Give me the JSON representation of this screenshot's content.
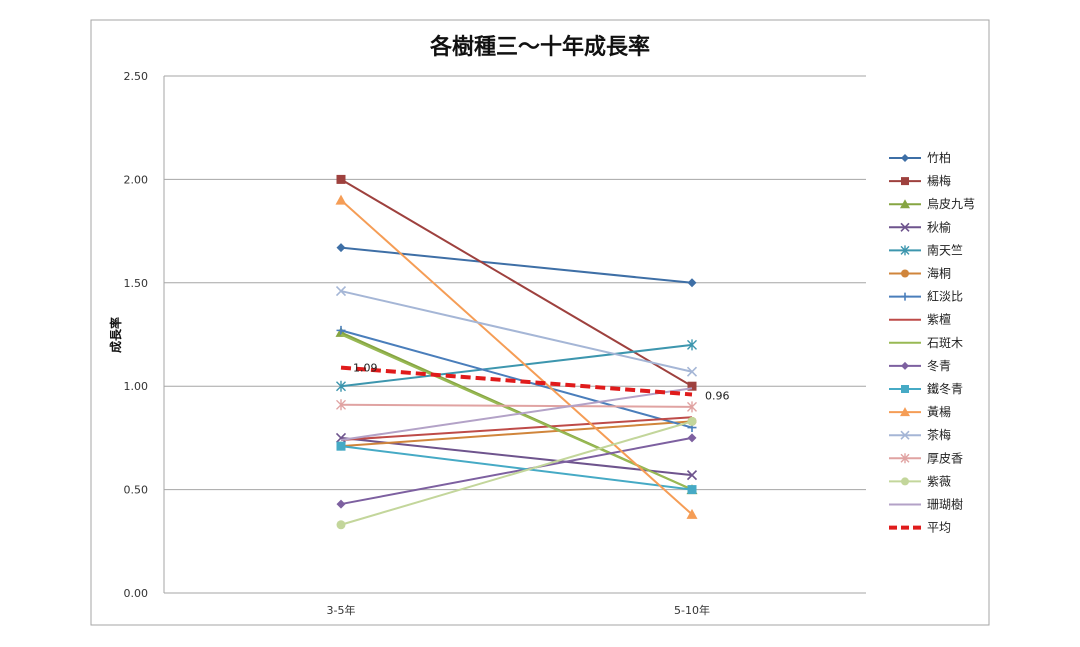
{
  "chart_data": {
    "type": "line",
    "title": "各樹種三～十年成長率",
    "xlabel": "",
    "ylabel": "成長率",
    "categories": [
      "3-5年",
      "5-10年"
    ],
    "ylim": [
      0,
      2.5
    ],
    "yticks": [
      "0.00",
      "0.50",
      "1.00",
      "1.50",
      "2.00",
      "2.50"
    ],
    "grid": true,
    "legend_position": "right",
    "series": [
      {
        "name": "竹柏",
        "values": [
          1.67,
          1.5
        ],
        "color": "#3e6fa6",
        "marker": "diamond"
      },
      {
        "name": "楊梅",
        "values": [
          2.0,
          1.0
        ],
        "color": "#9e413e",
        "marker": "square"
      },
      {
        "name": "烏皮九芎",
        "values": [
          1.26,
          0.5
        ],
        "color": "#86a542",
        "marker": "triangle"
      },
      {
        "name": "秋榆",
        "values": [
          0.75,
          0.57
        ],
        "color": "#6e548d",
        "marker": "x"
      },
      {
        "name": "南天竺",
        "values": [
          1.0,
          1.2
        ],
        "color": "#3d96ae",
        "marker": "star"
      },
      {
        "name": "海桐",
        "values": [
          0.71,
          0.83
        ],
        "color": "#d0853b",
        "marker": "circle"
      },
      {
        "name": "紅淡比",
        "values": [
          1.27,
          0.8
        ],
        "color": "#4a7ebb",
        "marker": "plus"
      },
      {
        "name": "紫檀",
        "values": [
          0.74,
          0.85
        ],
        "color": "#be4b48",
        "marker": "none"
      },
      {
        "name": "石斑木",
        "values": [
          1.25,
          0.5
        ],
        "color": "#98b954",
        "marker": "none"
      },
      {
        "name": "冬青",
        "values": [
          0.43,
          0.75
        ],
        "color": "#7d60a0",
        "marker": "diamond"
      },
      {
        "name": "鐵冬青",
        "values": [
          0.71,
          0.5
        ],
        "color": "#46aac5",
        "marker": "square"
      },
      {
        "name": "黃楊",
        "values": [
          1.9,
          0.38
        ],
        "color": "#f59d56",
        "marker": "triangle"
      },
      {
        "name": "茶梅",
        "values": [
          1.46,
          1.07
        ],
        "color": "#a5b6d6",
        "marker": "x"
      },
      {
        "name": "厚皮香",
        "values": [
          0.91,
          0.9
        ],
        "color": "#e0a3a2",
        "marker": "star"
      },
      {
        "name": "紫薇",
        "values": [
          0.33,
          0.83
        ],
        "color": "#c3d69b",
        "marker": "circle"
      },
      {
        "name": "珊瑚樹",
        "values": [
          0.74,
          0.99
        ],
        "color": "#b3a2c7",
        "marker": "none"
      },
      {
        "name": "平均",
        "values": [
          1.09,
          0.96
        ],
        "color": "#e01b1b",
        "marker": "none",
        "dashed": true,
        "labels": [
          "1.09",
          "0.96"
        ]
      }
    ]
  }
}
